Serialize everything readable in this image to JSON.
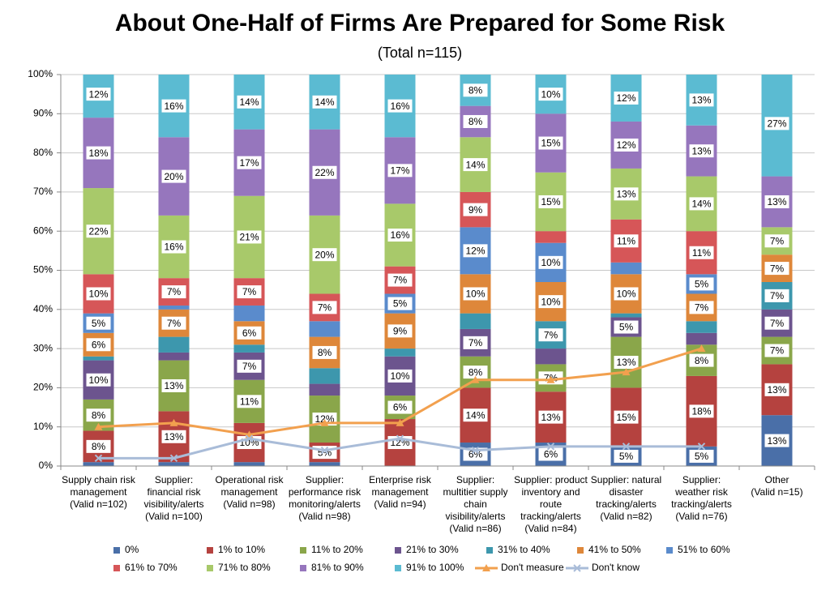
{
  "chart_data": {
    "type": "stacked_bar",
    "title": "About One-Half of Firms Are Prepared for Some Risk",
    "subtitle": "(Total n=115)",
    "categories": [
      [
        "Supply chain risk",
        "management",
        "(Valid n=102)"
      ],
      [
        "Supplier:",
        "financial risk",
        "visibility/alerts",
        "(Valid n=100)"
      ],
      [
        "Operational risk",
        "management",
        "(Valid n=98)"
      ],
      [
        "Supplier:",
        "performance risk",
        "monitoring/alerts",
        "(Valid n=98)"
      ],
      [
        "Enterprise risk",
        "management",
        "(Valid n=94)"
      ],
      [
        "Supplier:",
        "multitier supply",
        "chain",
        "visibility/alerts",
        "(Valid n=86)"
      ],
      [
        "Supplier: product",
        "inventory and",
        "route",
        "tracking/alerts",
        "(Valid n=84)"
      ],
      [
        "Supplier: natural",
        "disaster",
        "tracking/alerts",
        "(Valid n=82)"
      ],
      [
        "Supplier:",
        "weather risk",
        "tracking/alerts",
        "(Valid n=76)"
      ],
      [
        "Other",
        "(Valid n=15)"
      ]
    ],
    "ylim": [
      0,
      100
    ],
    "yticks": [
      {
        "value": 0,
        "label": "0%"
      },
      {
        "value": 10,
        "label": "10%"
      },
      {
        "value": 20,
        "label": "20%"
      },
      {
        "value": 30,
        "label": "30%"
      },
      {
        "value": 40,
        "label": "40%"
      },
      {
        "value": 50,
        "label": "50%"
      },
      {
        "value": 60,
        "label": "60%"
      },
      {
        "value": 70,
        "label": "70%"
      },
      {
        "value": 80,
        "label": "80%"
      },
      {
        "value": 90,
        "label": "90%"
      },
      {
        "value": 100,
        "label": "100%"
      }
    ],
    "grid": true,
    "series": [
      {
        "name": "0%",
        "color": "#4a6fa8",
        "values": [
          1,
          1,
          1,
          1,
          0,
          6,
          6,
          5,
          5,
          13
        ],
        "value_labels": [
          null,
          null,
          null,
          null,
          null,
          "6%",
          "6%",
          "5%",
          "5%",
          "13%"
        ]
      },
      {
        "name": "1% to 10%",
        "color": "#b5423f",
        "values": [
          8,
          13,
          10,
          5,
          12,
          14,
          13,
          15,
          18,
          13
        ],
        "value_labels": [
          "8%",
          "13%",
          "10%",
          "5%",
          "12%",
          "14%",
          "13%",
          "15%",
          "18%",
          "13%"
        ]
      },
      {
        "name": "11% to 20%",
        "color": "#8aa64a",
        "values": [
          8,
          13,
          11,
          12,
          6,
          8,
          7,
          13,
          8,
          7
        ],
        "value_labels": [
          "8%",
          "13%",
          "11%",
          "12%",
          "6%",
          "8%",
          "7%",
          "13%",
          "8%",
          "7%"
        ]
      },
      {
        "name": "21% to 30%",
        "color": "#6c548e",
        "values": [
          10,
          2,
          7,
          3,
          10,
          7,
          4,
          5,
          3,
          7
        ],
        "value_labels": [
          "10%",
          null,
          "7%",
          null,
          "10%",
          "7%",
          null,
          "5%",
          null,
          "7%"
        ]
      },
      {
        "name": "31% to 40%",
        "color": "#3d97ad",
        "values": [
          1,
          4,
          2,
          4,
          2,
          4,
          7,
          1,
          3,
          7
        ],
        "value_labels": [
          null,
          null,
          null,
          null,
          null,
          null,
          "7%",
          null,
          null,
          "7%"
        ]
      },
      {
        "name": "41% to 50%",
        "color": "#de873a",
        "values": [
          6,
          7,
          6,
          8,
          9,
          10,
          10,
          10,
          7,
          7
        ],
        "value_labels": [
          "6%",
          "7%",
          "6%",
          "8%",
          "9%",
          "10%",
          "10%",
          "10%",
          "7%",
          "7%"
        ]
      },
      {
        "name": "51% to 60%",
        "color": "#5a8bcc",
        "values": [
          5,
          1,
          4,
          4,
          5,
          12,
          10,
          3,
          5,
          0
        ],
        "value_labels": [
          "5%",
          null,
          null,
          null,
          "5%",
          "12%",
          "10%",
          null,
          "5%",
          null
        ]
      },
      {
        "name": "61% to 70%",
        "color": "#d65658",
        "values": [
          10,
          7,
          7,
          7,
          7,
          9,
          3,
          11,
          11,
          0
        ],
        "value_labels": [
          "10%",
          "7%",
          "7%",
          "7%",
          "7%",
          "9%",
          null,
          "11%",
          "11%",
          null
        ]
      },
      {
        "name": "71% to 80%",
        "color": "#a8c96a",
        "values": [
          22,
          16,
          21,
          20,
          16,
          14,
          15,
          13,
          14,
          7
        ],
        "value_labels": [
          "22%",
          "16%",
          "21%",
          "20%",
          "16%",
          "14%",
          "15%",
          "13%",
          "14%",
          "7%"
        ]
      },
      {
        "name": "81% to 90%",
        "color": "#9676bd",
        "values": [
          18,
          20,
          17,
          22,
          17,
          8,
          15,
          12,
          13,
          13
        ],
        "value_labels": [
          "18%",
          "20%",
          "17%",
          "22%",
          "17%",
          "8%",
          "15%",
          "12%",
          "13%",
          "13%"
        ]
      },
      {
        "name": "91% to 100%",
        "color": "#5bbbd2",
        "values": [
          12,
          16,
          14,
          14,
          16,
          8,
          10,
          12,
          13,
          27
        ],
        "value_labels": [
          "12%",
          "16%",
          "14%",
          "14%",
          "16%",
          "8%",
          "10%",
          "12%",
          "13%",
          "27%"
        ]
      }
    ],
    "lines": [
      {
        "name": "Don't measure",
        "color": "#f2a04e",
        "marker": "triangle",
        "values": [
          10,
          11,
          8,
          11,
          11,
          22,
          22,
          24,
          30,
          null
        ]
      },
      {
        "name": "Don't know",
        "color": "#a9bcd8",
        "marker": "cross",
        "values": [
          2,
          2,
          7,
          4,
          7,
          4,
          5,
          5,
          5,
          null
        ]
      }
    ]
  }
}
